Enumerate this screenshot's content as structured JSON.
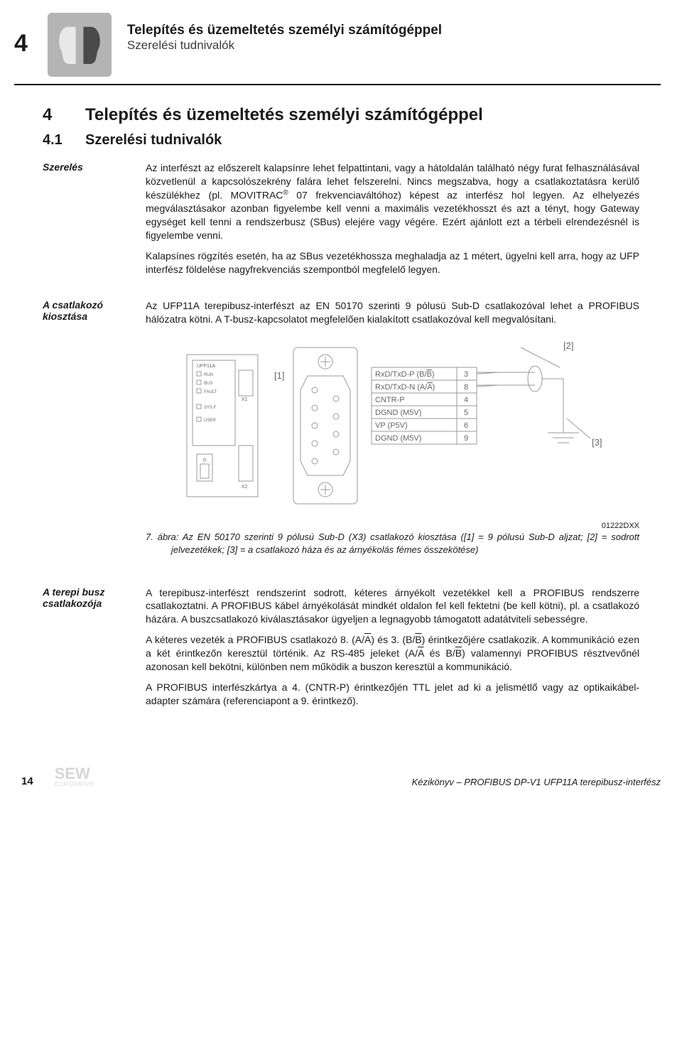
{
  "header": {
    "chapter_number": "4",
    "title": "Telepítés és üzemeltetés személyi számítógéppel",
    "subtitle": "Szerelési tudnivalók"
  },
  "h1": {
    "num": "4",
    "text": "Telepítés és üzemeltetés személyi számítógéppel"
  },
  "h2": {
    "num": "4.1",
    "text": "Szerelési tudnivalók"
  },
  "sections": {
    "szereles": {
      "label": "Szerelés",
      "p1a": "Az interfészt az előszerelt kalapsínre lehet felpattintani, vagy a hátoldalán található négy furat felhasználásával közvetlenül a kapcsolószekrény falára lehet felszerelni. Nincs megszabva, hogy a csatlakoztatásra kerülő készülékhez (pl. MOVITRAC",
      "p1_sup": "®",
      "p1b": " 07 frekvenciaváltóhoz) képest az interfész hol legyen. Az elhelyezés megválasztásakor azonban figyelembe kell venni a maximális vezetékhosszt és azt a tényt, hogy Gateway egységet kell tenni a rendszerbusz (SBus) elejére vagy végére. Ezért ajánlott ezt a térbeli elrendezésnél is figyelembe venni.",
      "p2": "Kalapsínes rögzítés esetén, ha az SBus vezetékhossza meghaladja az 1 métert, ügyelni kell arra, hogy az UFP interfész földelése nagyfrekvenciás szempontból megfelelő legyen."
    },
    "csatlakozo": {
      "label": "A csatlakozó kiosztása",
      "p1": "Az UFP11A terepibusz-interfészt az EN 50170 szerinti 9 pólusú Sub-D csatlakozóval lehet a PROFIBUS hálózatra kötni. A T-busz-kapcsolatot megfelelően kialakított csatlakozóval kell megvalósítani."
    },
    "terepibusz": {
      "label": "A terepi busz csatlakozója",
      "p1": "A terepibusz-interfészt rendszerint sodrott, kéteres árnyékolt vezetékkel kell a PROFIBUS rendszerre csatlakoztatni. A PROFIBUS kábel árnyékolását mindkét oldalon fel kell fektetni (be kell kötni), pl. a csatlakozó házára. A buszcsatlakozó kiválasztásakor ügyeljen a legnagyobb támogatott adatátviteli sebességre.",
      "p2_parts": [
        "A kéteres vezeték a PROFIBUS csatlakozó 8. (A/",
        "A",
        ") és 3. (B/",
        "B",
        ") érintkezőjére csatlakozik. A kommunikáció ezen a két érintkezőn keresztül történik. Az RS-485 jeleket (A/",
        "A",
        " és B/",
        "B",
        ") valamennyi PROFIBUS résztvevőnél azonosan kell bekötni, különben nem működik a buszon keresztül a kommunikáció."
      ],
      "p3": "A PROFIBUS interfészkártya a 4. (CNTR-P) érintkezőjén TTL jelet ad ki a jelismétlő vagy az optikaikábel-adapter számára (referenciapont a 9. érintkező)."
    }
  },
  "figure": {
    "device_label": "UFP11A",
    "left_labels": [
      "RUN",
      "BUS",
      "FAULT",
      "SYS F",
      "USER"
    ],
    "left_terms": [
      "X1",
      "X2"
    ],
    "callouts": {
      "left": "[1]",
      "tr": "[2]",
      "br": "[3]"
    },
    "pin_table": {
      "rows": [
        {
          "name_a": "RxD/TxD-P (B/",
          "name_ov": "B",
          "name_b": ")",
          "pin": "3"
        },
        {
          "name_a": "RxD/TxD-N (A/",
          "name_ov": "A",
          "name_b": ")",
          "pin": "8"
        },
        {
          "name_a": "CNTR-P",
          "name_ov": "",
          "name_b": "",
          "pin": "4"
        },
        {
          "name_a": "DGND (M5V)",
          "name_ov": "",
          "name_b": "",
          "pin": "5"
        },
        {
          "name_a": "VP (P5V)",
          "name_ov": "",
          "name_b": "",
          "pin": "6"
        },
        {
          "name_a": "DGND (M5V)",
          "name_ov": "",
          "name_b": "",
          "pin": "9"
        }
      ]
    },
    "code": "01222DXX",
    "caption": "7. ábra: Az EN 50170 szerinti 9 pólusú Sub-D (X3) csatlakozó kiosztása ([1] = 9 pólusú Sub-D aljzat; [2] = sodrott jelvezetékek; [3] = a csatlakozó háza és az árnyékolás fémes összekötése)"
  },
  "footer": {
    "page": "14",
    "logo": "SEW",
    "logo_sub": "EURODRIVE",
    "right": "Kézikönyv – PROFIBUS DP-V1 UFP11A terepibusz-interfész"
  },
  "colors": {
    "icon_bg": "#b4b4b4",
    "icon_fg": "#e8e8e8",
    "stroke": "#8a8a8a",
    "svg_text": "#666666",
    "rule": "#000000"
  }
}
